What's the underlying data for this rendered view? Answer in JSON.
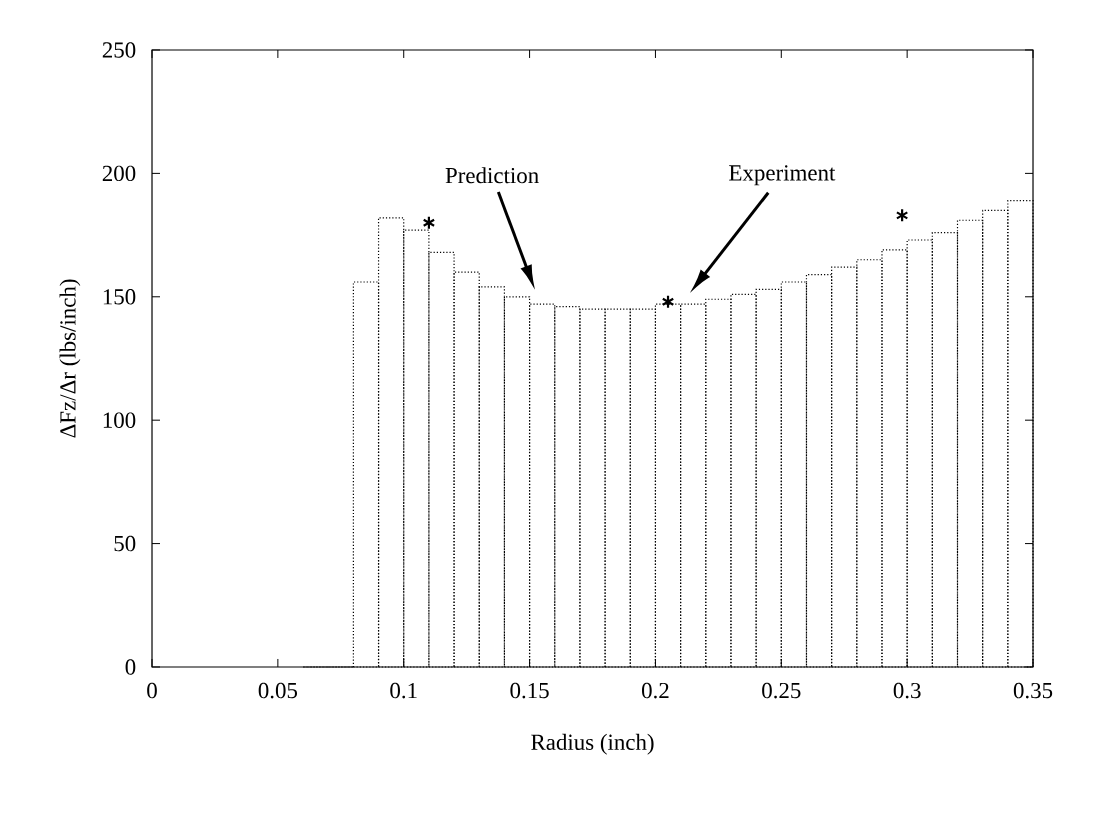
{
  "chart_data": {
    "type": "histogram",
    "xlabel": "Radius (inch)",
    "ylabel": "ΔFz/Δr (lbs/inch)",
    "xlim": [
      0,
      0.35
    ],
    "ylim": [
      0,
      250
    ],
    "xticks": [
      0,
      0.05,
      0.1,
      0.15,
      0.2,
      0.25,
      0.3,
      0.35
    ],
    "yticks": [
      0,
      50,
      100,
      150,
      200,
      250
    ],
    "series": [
      {
        "color": "#000000",
        "line_style": "dotted",
        "bins": [
          0.06,
          0.07,
          0.08,
          0.09,
          0.1,
          0.11,
          0.12,
          0.13,
          0.14,
          0.15,
          0.16,
          0.17,
          0.18,
          0.19,
          0.2,
          0.21,
          0.22,
          0.23,
          0.24,
          0.25,
          0.26,
          0.27,
          0.28,
          0.29,
          0.3,
          0.31,
          0.32,
          0.33,
          0.34,
          0.35
        ],
        "values": [
          0,
          0,
          156,
          182,
          177,
          168,
          160,
          154,
          150,
          147,
          146,
          145,
          145,
          145,
          147,
          147,
          149,
          151,
          153,
          156,
          159,
          162,
          165,
          169,
          173,
          176,
          181,
          185,
          189
        ]
      },
      {
        "type": "scatter",
        "color": "#000000",
        "marker": "cross",
        "x": [
          0.11,
          0.205,
          0.298
        ],
        "values": [
          180,
          148,
          183
        ]
      }
    ],
    "annotations": [
      "Prediction",
      "Experiment"
    ],
    "grid": false
  }
}
